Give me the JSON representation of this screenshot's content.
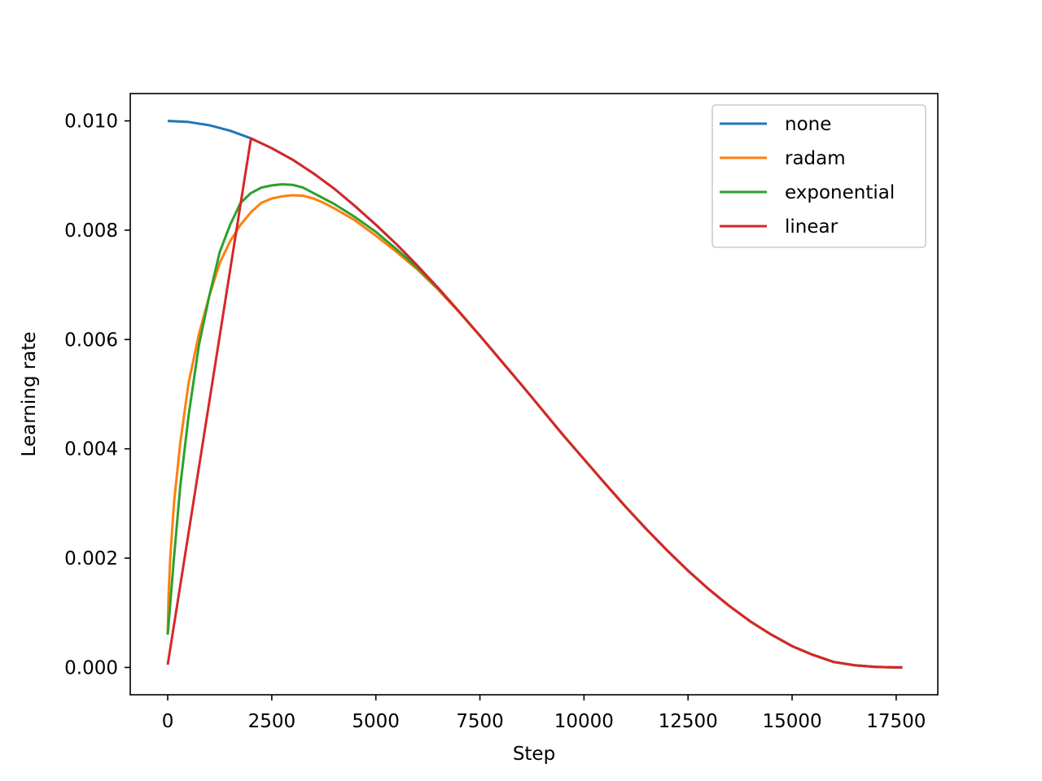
{
  "chart_data": {
    "type": "line",
    "title": "",
    "xlabel": "Step",
    "ylabel": "Learning rate",
    "xlim": [
      -900,
      18500
    ],
    "ylim": [
      -0.0005,
      0.0105
    ],
    "xticks": [
      0,
      2500,
      5000,
      7500,
      10000,
      12500,
      15000,
      17500
    ],
    "xtick_labels": [
      "0",
      "2500",
      "5000",
      "7500",
      "10000",
      "12500",
      "15000",
      "17500"
    ],
    "yticks": [
      0.0,
      0.002,
      0.004,
      0.006,
      0.008,
      0.01
    ],
    "ytick_labels": [
      "0.000",
      "0.002",
      "0.004",
      "0.006",
      "0.008",
      "0.010"
    ],
    "grid": false,
    "legend_position": "top-right",
    "series": [
      {
        "name": "none",
        "color": "#1f77b4",
        "x": [
          0,
          500,
          1000,
          1500,
          2000,
          2500,
          3000,
          3500,
          4000,
          4500,
          5000,
          5500,
          6000,
          6500,
          7000,
          7500,
          8000,
          8500,
          9000,
          9500,
          10000,
          10500,
          11000,
          11500,
          12000,
          12500,
          13000,
          13500,
          14000,
          14500,
          15000,
          15500,
          16000,
          16500,
          17000,
          17500,
          17650
        ],
        "y": [
          0.01,
          0.00998,
          0.00992,
          0.00982,
          0.00968,
          0.0095,
          0.00929,
          0.00904,
          0.00876,
          0.00844,
          0.0081,
          0.00774,
          0.00735,
          0.00694,
          0.00651,
          0.00607,
          0.00562,
          0.00517,
          0.00471,
          0.00425,
          0.00381,
          0.00337,
          0.00294,
          0.00253,
          0.00214,
          0.00177,
          0.00143,
          0.00112,
          0.00084,
          0.0006,
          0.00039,
          0.00023,
          0.0001,
          4e-05,
          1e-05,
          0.0,
          0.0
        ]
      },
      {
        "name": "radam",
        "color": "#ff7f0e",
        "x": [
          0,
          20,
          60,
          150,
          300,
          500,
          750,
          1000,
          1250,
          1500,
          1750,
          2000,
          2250,
          2500,
          2750,
          3000,
          3250,
          3500,
          3750,
          4000,
          4500,
          5000,
          5500,
          6000,
          6500,
          7000,
          7500,
          8000,
          8500,
          9000,
          9500,
          10000,
          10500,
          11000,
          11500,
          12000,
          12500,
          13000,
          13500,
          14000,
          14500,
          15000,
          15500,
          16000,
          16500,
          17000,
          17500,
          17650
        ],
        "y": [
          0.0006,
          0.0013,
          0.002,
          0.003,
          0.0041,
          0.0052,
          0.0061,
          0.0068,
          0.0074,
          0.0078,
          0.0081,
          0.00833,
          0.0085,
          0.00858,
          0.00862,
          0.00864,
          0.00863,
          0.00858,
          0.0085,
          0.0084,
          0.00818,
          0.0079,
          0.0076,
          0.00728,
          0.00691,
          0.0065,
          0.00607,
          0.00562,
          0.00517,
          0.00471,
          0.00425,
          0.00381,
          0.00337,
          0.00294,
          0.00253,
          0.00214,
          0.00177,
          0.00143,
          0.00112,
          0.00084,
          0.0006,
          0.00039,
          0.00023,
          0.0001,
          4e-05,
          1e-05,
          0.0,
          0.0
        ]
      },
      {
        "name": "exponential",
        "color": "#2ca02c",
        "x": [
          0,
          150,
          300,
          500,
          750,
          1000,
          1250,
          1500,
          1750,
          2000,
          2250,
          2500,
          2750,
          3000,
          3250,
          3500,
          3750,
          4000,
          4500,
          5000,
          5500,
          6000,
          6500,
          7000,
          7500,
          8000,
          8500,
          9000,
          9500,
          10000,
          10500,
          11000,
          11500,
          12000,
          12500,
          13000,
          13500,
          14000,
          14500,
          15000,
          15500,
          16000,
          16500,
          17000,
          17500,
          17650
        ],
        "y": [
          0.0006,
          0.002,
          0.0033,
          0.0046,
          0.0059,
          0.0068,
          0.0076,
          0.0081,
          0.0085,
          0.00868,
          0.00878,
          0.00882,
          0.00884,
          0.00883,
          0.00878,
          0.00868,
          0.00858,
          0.00848,
          0.00824,
          0.00797,
          0.00765,
          0.00731,
          0.00693,
          0.00651,
          0.00607,
          0.00562,
          0.00517,
          0.00471,
          0.00425,
          0.00381,
          0.00337,
          0.00294,
          0.00253,
          0.00214,
          0.00177,
          0.00143,
          0.00112,
          0.00084,
          0.0006,
          0.00039,
          0.00023,
          0.0001,
          4e-05,
          1e-05,
          0.0,
          0.0
        ]
      },
      {
        "name": "linear",
        "color": "#d62728",
        "x": [
          0,
          2000,
          2500,
          3000,
          3500,
          4000,
          4500,
          5000,
          5500,
          6000,
          6500,
          7000,
          7500,
          8000,
          8500,
          9000,
          9500,
          10000,
          10500,
          11000,
          11500,
          12000,
          12500,
          13000,
          13500,
          14000,
          14500,
          15000,
          15500,
          16000,
          16500,
          17000,
          17500,
          17650
        ],
        "y": [
          5e-05,
          0.00968,
          0.0095,
          0.00929,
          0.00904,
          0.00876,
          0.00844,
          0.0081,
          0.00774,
          0.00735,
          0.00694,
          0.00651,
          0.00607,
          0.00562,
          0.00517,
          0.00471,
          0.00425,
          0.00381,
          0.00337,
          0.00294,
          0.00253,
          0.00214,
          0.00177,
          0.00143,
          0.00112,
          0.00084,
          0.0006,
          0.00039,
          0.00023,
          0.0001,
          4e-05,
          1e-05,
          0.0,
          0.0
        ]
      }
    ]
  }
}
